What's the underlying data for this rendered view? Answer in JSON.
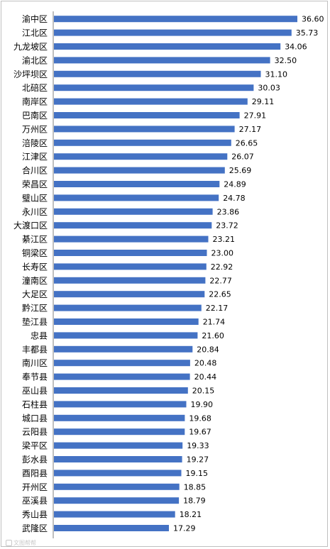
{
  "chart_data": {
    "type": "bar",
    "orientation": "horizontal",
    "title": "",
    "xlabel": "",
    "ylabel": "",
    "xlim": [
      0,
      36.6
    ],
    "grid": false,
    "legend": "none",
    "bar_color": "#4472c4",
    "categories": [
      "渝中区",
      "江北区",
      "九龙坡区",
      "渝北区",
      "沙坪坝区",
      "北碚区",
      "南岸区",
      "巴南区",
      "万州区",
      "涪陵区",
      "江津区",
      "合川区",
      "荣昌区",
      "璧山区",
      "永川区",
      "大渡口区",
      "綦江区",
      "铜梁区",
      "长寿区",
      "潼南区",
      "大足区",
      "黔江区",
      "垫江县",
      "忠县",
      "丰都县",
      "南川区",
      "奉节县",
      "巫山县",
      "石柱县",
      "城口县",
      "云阳县",
      "梁平区",
      "彭水县",
      "酉阳县",
      "开州区",
      "巫溪县",
      "秀山县",
      "武隆区"
    ],
    "values": [
      36.6,
      35.73,
      34.06,
      32.5,
      31.1,
      30.03,
      29.11,
      27.91,
      27.17,
      26.65,
      26.07,
      25.69,
      24.89,
      24.78,
      23.86,
      23.72,
      23.21,
      23.0,
      22.92,
      22.77,
      22.65,
      22.17,
      21.74,
      21.6,
      20.84,
      20.48,
      20.44,
      20.15,
      19.9,
      19.68,
      19.67,
      19.33,
      19.27,
      19.15,
      18.85,
      18.79,
      18.21,
      17.29
    ],
    "value_labels": [
      "36.60",
      "35.73",
      "34.06",
      "32.50",
      "31.10",
      "30.03",
      "29.11",
      "27.91",
      "27.17",
      "26.65",
      "26.07",
      "25.69",
      "24.89",
      "24.78",
      "23.86",
      "23.72",
      "23.21",
      "23.00",
      "22.92",
      "22.77",
      "22.65",
      "22.17",
      "21.74",
      "21.60",
      "20.84",
      "20.48",
      "20.44",
      "20.15",
      "19.90",
      "19.68",
      "19.67",
      "19.33",
      "19.27",
      "19.15",
      "18.85",
      "18.79",
      "18.21",
      "17.29"
    ]
  },
  "watermark": {
    "text": "文图帮帮",
    "icon": "camera-logo-icon"
  }
}
